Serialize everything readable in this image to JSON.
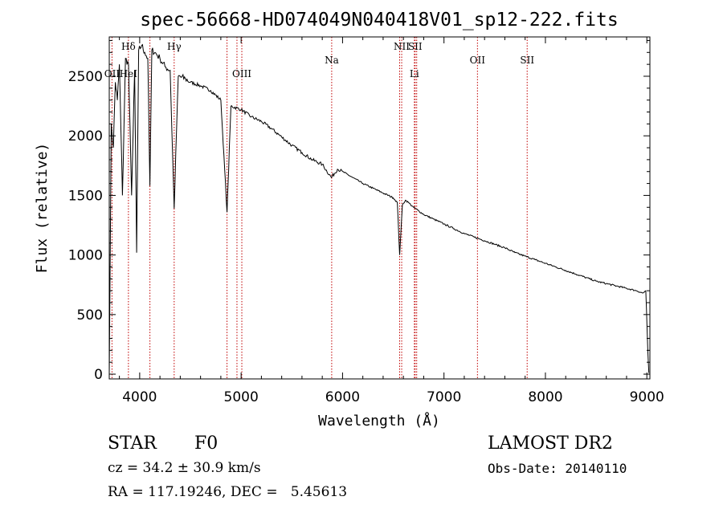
{
  "chart_data": {
    "type": "line",
    "title": "spec-56668-HD074049N040418V01_sp12-222.fits",
    "xlabel": "Wavelength (Å)",
    "ylabel": "Flux (relative)",
    "xlim": [
      3700,
      9030
    ],
    "ylim": [
      -40,
      2830
    ],
    "xticks": [
      "4000",
      "5000",
      "6000",
      "7000",
      "8000",
      "9000"
    ],
    "yticks": [
      "0",
      "500",
      "1000",
      "1500",
      "2000",
      "2500"
    ],
    "grid": false,
    "series": [
      {
        "x": [
          3700,
          3720,
          3740,
          3760,
          3780,
          3800,
          3830,
          3860,
          3890,
          3920,
          3950,
          3970,
          3990,
          4020,
          4050,
          4080,
          4101,
          4120,
          4150,
          4200,
          4250,
          4300,
          4340,
          4380,
          4450,
          4500,
          4600,
          4700,
          4800,
          4861,
          4900,
          5000,
          5100,
          5200,
          5300,
          5400,
          5500,
          5600,
          5700,
          5800,
          5890,
          5950,
          6000,
          6100,
          6200,
          6300,
          6400,
          6500,
          6540,
          6563,
          6590,
          6620,
          6650,
          6700,
          6800,
          6900,
          7000,
          7100,
          7200,
          7300,
          7400,
          7500,
          7600,
          7700,
          7800,
          7900,
          8000,
          8100,
          8200,
          8300,
          8400,
          8500,
          8600,
          8700,
          8800,
          8900,
          8960,
          8990,
          9010,
          9020
        ],
        "y": [
          0,
          2100,
          1900,
          2450,
          2300,
          2600,
          1500,
          2650,
          2600,
          1500,
          2550,
          1020,
          2720,
          2760,
          2700,
          2650,
          1580,
          2720,
          2700,
          2650,
          2580,
          2550,
          1390,
          2500,
          2480,
          2450,
          2420,
          2380,
          2300,
          1360,
          2250,
          2220,
          2160,
          2120,
          2060,
          1990,
          1920,
          1860,
          1800,
          1760,
          1650,
          1720,
          1700,
          1650,
          1600,
          1560,
          1520,
          1480,
          1440,
          1000,
          1420,
          1460,
          1440,
          1400,
          1340,
          1300,
          1260,
          1220,
          1180,
          1150,
          1120,
          1090,
          1060,
          1020,
          990,
          960,
          930,
          900,
          870,
          840,
          810,
          780,
          760,
          740,
          720,
          700,
          680,
          700,
          180,
          10
        ]
      }
    ],
    "annotations": [
      {
        "label": "Hδ",
        "x": 3889,
        "row": 1
      },
      {
        "label": "OII",
        "x": 3727,
        "row": 2
      },
      {
        "label": "HeI",
        "x": 3889,
        "row": 2
      },
      {
        "label": "Hγ",
        "x": 4340,
        "row": 1
      },
      {
        "label": "OIII",
        "x": 5007,
        "row": 2
      },
      {
        "label": "Na",
        "x": 5893,
        "row": 1
      },
      {
        "label": "NII",
        "x": 6583,
        "row": 0
      },
      {
        "label": "SII",
        "x": 6716,
        "row": 0
      },
      {
        "label": "Li",
        "x": 6708,
        "row": 2
      },
      {
        "label": "OII",
        "x": 7330,
        "row": 1
      },
      {
        "label": "SII",
        "x": 7820,
        "row": 1
      }
    ],
    "reference_lines": [
      3727,
      3889,
      4101,
      4340,
      4861,
      4959,
      5007,
      5893,
      6563,
      6583,
      6708,
      6716,
      6731,
      7330,
      7820
    ]
  },
  "info": {
    "object_class": "STAR",
    "subclass": "F0",
    "survey": "LAMOST DR2",
    "redshift": "cz = 34.2 ± 30.9 km/s",
    "obs_date": "Obs-Date: 20140110",
    "coords": "RA = 117.19246, DEC =   5.45613"
  }
}
